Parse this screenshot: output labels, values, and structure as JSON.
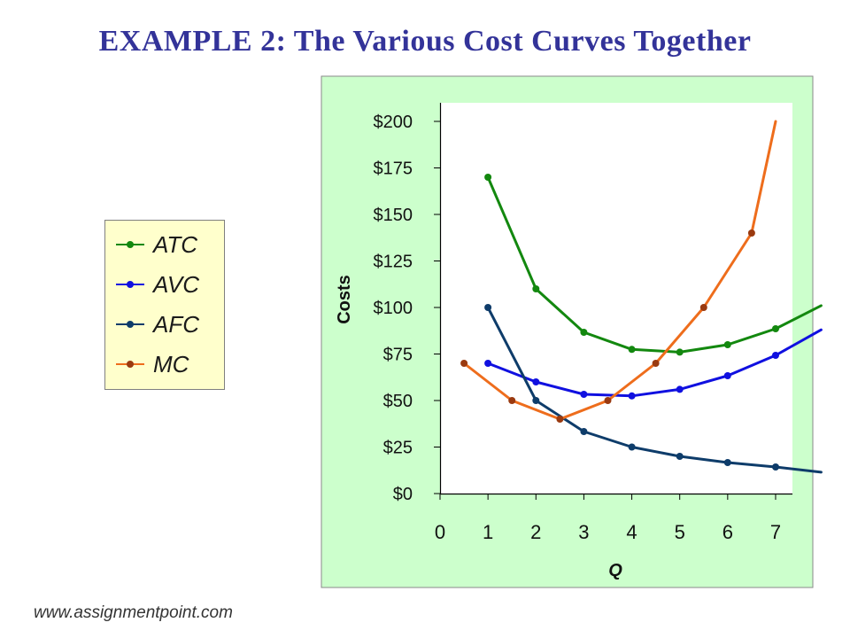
{
  "page": {
    "title": "EXAMPLE 2:  The Various Cost Curves Together",
    "footer": "www.assignmentpoint.com"
  },
  "colors": {
    "title": "#333399",
    "chart_background": "#ccffcc",
    "plot_background": "#ffffff",
    "legend_background": "#ffffcc",
    "ATC": "#13880f",
    "AVC": "#1010e0",
    "AFC": "#0e3c6a",
    "MC": "#ee6d1c",
    "MC_marker": "#9a3a10"
  },
  "legend": {
    "items": [
      {
        "label": "ATC",
        "color": "#13880f"
      },
      {
        "label": "AVC",
        "color": "#1010e0"
      },
      {
        "label": "AFC",
        "color": "#0e3c6a"
      },
      {
        "label": "MC",
        "color": "#9a3a10"
      }
    ]
  },
  "chart_data": {
    "type": "line",
    "xlabel": "Q",
    "ylabel": "Costs",
    "xlim": [
      0,
      7
    ],
    "ylim": [
      0,
      200
    ],
    "x_ticks": [
      0,
      1,
      2,
      3,
      4,
      5,
      6,
      7
    ],
    "x_tick_labels": [
      "0",
      "1",
      "2",
      "3",
      "4",
      "5",
      "6",
      "7"
    ],
    "y_ticks": [
      0,
      25,
      50,
      75,
      100,
      125,
      150,
      175,
      200
    ],
    "y_tick_labels": [
      "$0",
      "$25",
      "$50",
      "$75",
      "$100",
      "$125",
      "$150",
      "$175",
      "$200"
    ],
    "grid": false,
    "legend_position": "left, outside plot",
    "series": [
      {
        "name": "ATC",
        "color": "#13880f",
        "marker_color": "#13880f",
        "points": [
          [
            1,
            170
          ],
          [
            2,
            110
          ],
          [
            3,
            86.67
          ],
          [
            4,
            77.5
          ],
          [
            5,
            76
          ],
          [
            6,
            80
          ],
          [
            7,
            88.57
          ]
        ],
        "extension": [
          7.95,
          101
        ]
      },
      {
        "name": "AVC",
        "color": "#1010e0",
        "marker_color": "#1010e0",
        "points": [
          [
            1,
            70
          ],
          [
            2,
            60
          ],
          [
            3,
            53.33
          ],
          [
            4,
            52.5
          ],
          [
            5,
            56
          ],
          [
            6,
            63.33
          ],
          [
            7,
            74.29
          ]
        ],
        "extension": [
          7.95,
          88
        ]
      },
      {
        "name": "AFC",
        "color": "#0e3c6a",
        "marker_color": "#0e3c6a",
        "points": [
          [
            1,
            100
          ],
          [
            2,
            50
          ],
          [
            3,
            33.33
          ],
          [
            4,
            25
          ],
          [
            5,
            20
          ],
          [
            6,
            16.67
          ],
          [
            7,
            14.29
          ]
        ],
        "extension": [
          7.95,
          11.5
        ]
      },
      {
        "name": "MC",
        "color": "#ee6d1c",
        "marker_color": "#9a3a10",
        "points": [
          [
            0.5,
            70
          ],
          [
            1.5,
            50
          ],
          [
            2.5,
            40
          ],
          [
            3.5,
            50
          ],
          [
            4.5,
            70
          ],
          [
            5.5,
            100
          ],
          [
            6.5,
            140
          ]
        ],
        "extension": [
          7,
          200
        ]
      }
    ]
  }
}
